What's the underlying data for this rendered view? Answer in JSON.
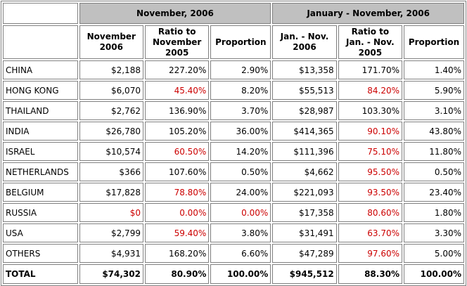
{
  "header": {
    "group_nov": "November, 2006",
    "group_ytd": "January - November, 2006",
    "col_nov_value": "November 2006",
    "col_nov_ratio": "Ratio to November 2005",
    "col_nov_prop": "Proportion",
    "col_ytd_value": "Jan. - Nov. 2006",
    "col_ytd_ratio": "Ratio to Jan. - Nov. 2005",
    "col_ytd_prop": "Proportion"
  },
  "colors": {
    "negative": "#cc0000",
    "header_bg": "#c0c0c0",
    "border": "#808080"
  },
  "rows": [
    {
      "country": "CHINA",
      "nov": "$2,188",
      "nov_ratio": "227.20%",
      "nov_prop": "2.90%",
      "ytd": "$13,358",
      "ytd_ratio": "171.70%",
      "ytd_prop": "1.40%",
      "red": []
    },
    {
      "country": "HONG KONG",
      "nov": "$6,070",
      "nov_ratio": "45.40%",
      "nov_prop": "8.20%",
      "ytd": "$55,513",
      "ytd_ratio": "84.20%",
      "ytd_prop": "5.90%",
      "red": [
        "nov_ratio",
        "ytd_ratio"
      ]
    },
    {
      "country": "THAILAND",
      "nov": "$2,762",
      "nov_ratio": "136.90%",
      "nov_prop": "3.70%",
      "ytd": "$28,987",
      "ytd_ratio": "103.30%",
      "ytd_prop": "3.10%",
      "red": []
    },
    {
      "country": "INDIA",
      "nov": "$26,780",
      "nov_ratio": "105.20%",
      "nov_prop": "36.00%",
      "ytd": "$414,365",
      "ytd_ratio": "90.10%",
      "ytd_prop": "43.80%",
      "red": [
        "ytd_ratio"
      ]
    },
    {
      "country": "ISRAEL",
      "nov": "$10,574",
      "nov_ratio": "60.50%",
      "nov_prop": "14.20%",
      "ytd": "$111,396",
      "ytd_ratio": "75.10%",
      "ytd_prop": "11.80%",
      "red": [
        "nov_ratio",
        "ytd_ratio"
      ]
    },
    {
      "country": "NETHERLANDS",
      "nov": "$366",
      "nov_ratio": "107.60%",
      "nov_prop": "0.50%",
      "ytd": "$4,662",
      "ytd_ratio": "95.50%",
      "ytd_prop": "0.50%",
      "red": [
        "ytd_ratio"
      ]
    },
    {
      "country": "BELGIUM",
      "nov": "$17,828",
      "nov_ratio": "78.80%",
      "nov_prop": "24.00%",
      "ytd": "$221,093",
      "ytd_ratio": "93.50%",
      "ytd_prop": "23.40%",
      "red": [
        "nov_ratio",
        "ytd_ratio"
      ]
    },
    {
      "country": "RUSSIA",
      "nov": "$0",
      "nov_ratio": "0.00%",
      "nov_prop": "0.00%",
      "ytd": "$17,358",
      "ytd_ratio": "80.60%",
      "ytd_prop": "1.80%",
      "red": [
        "nov",
        "nov_ratio",
        "nov_prop",
        "ytd_ratio"
      ]
    },
    {
      "country": "USA",
      "nov": "$2,799",
      "nov_ratio": "59.40%",
      "nov_prop": "3.80%",
      "ytd": "$31,491",
      "ytd_ratio": "63.70%",
      "ytd_prop": "3.30%",
      "red": [
        "nov_ratio",
        "ytd_ratio"
      ]
    },
    {
      "country": "OTHERS",
      "nov": "$4,931",
      "nov_ratio": "168.20%",
      "nov_prop": "6.60%",
      "ytd": "$47,289",
      "ytd_ratio": "97.60%",
      "ytd_prop": "5.00%",
      "red": [
        "ytd_ratio"
      ]
    }
  ],
  "total": {
    "country": "TOTAL",
    "nov": "$74,302",
    "nov_ratio": "80.90%",
    "nov_prop": "100.00%",
    "ytd": "$945,512",
    "ytd_ratio": "88.30%",
    "ytd_prop": "100.00%"
  }
}
